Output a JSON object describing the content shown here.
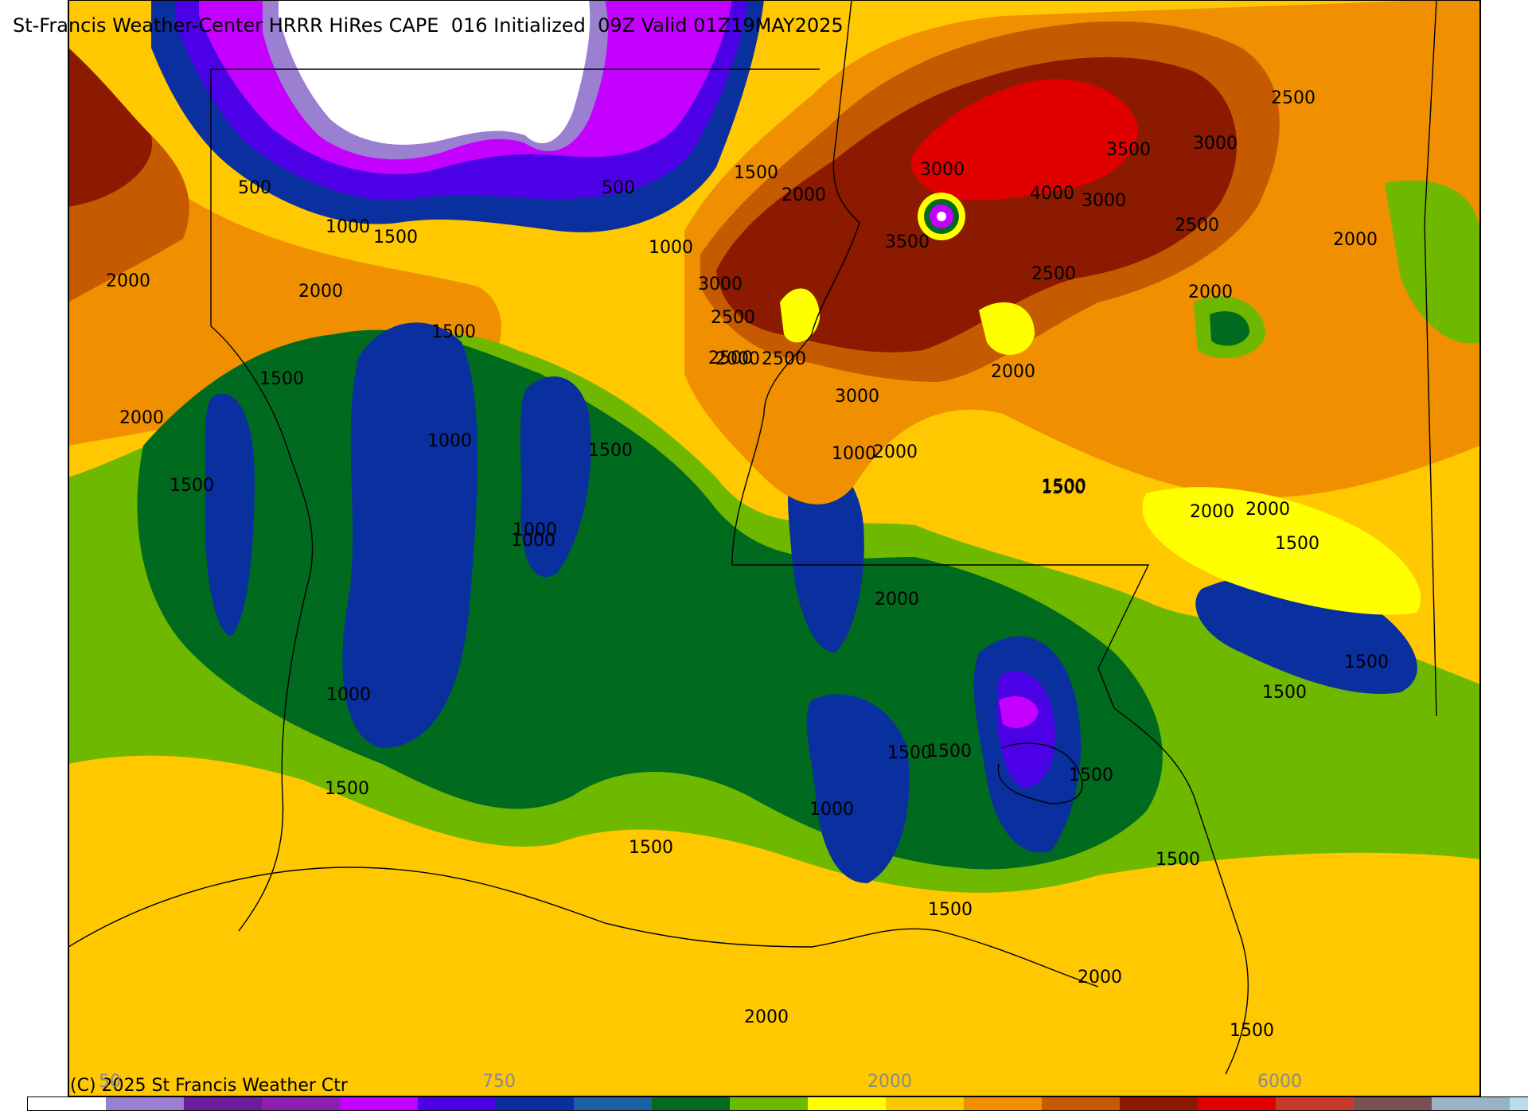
{
  "title": "St-Francis Weather-Center HRRR HiRes CAPE  016 Initialized  09Z Valid 01Z19MAY2025",
  "copyright": "(C) 2025 St Francis Weather Ctr",
  "colorbar": {
    "tick_labels": [
      "50",
      "750",
      "2000",
      "6000"
    ],
    "colors": [
      "#ffffff",
      "#9b7fd1",
      "#6a1c9a",
      "#8b1fb0",
      "#c400ff",
      "#4c00e6",
      "#0a2f9e",
      "#1d5fa3",
      "#006b1e",
      "#6fb800",
      "#ffff00",
      "#ffc800",
      "#f09000",
      "#c65a00",
      "#8b1a00",
      "#e00000",
      "#c83a28",
      "#7a5050",
      "#9ab2c8",
      "#b8dcec"
    ]
  },
  "contour_labels": [
    "500",
    "500",
    "1000",
    "1500",
    "1000",
    "1500",
    "2000",
    "2000",
    "2000",
    "1500",
    "1500",
    "2000",
    "1000",
    "1500",
    "1000",
    "1500",
    "1000",
    "1000",
    "1500",
    "1000",
    "1500",
    "1500",
    "1500",
    "2000",
    "2500",
    "3000",
    "2500",
    "2000",
    "2500",
    "3000",
    "3500",
    "3000",
    "4000",
    "3000",
    "3500",
    "3000",
    "2500",
    "2500",
    "2000",
    "2000",
    "2000",
    "2000",
    "2000",
    "1500",
    "1500",
    "1000",
    "1500",
    "1500",
    "1500",
    "2000",
    "1500",
    "1500",
    "2000",
    "1500",
    "1500",
    "2500",
    "2000"
  ],
  "map_colors": {
    "white": "#ffffff",
    "lavender": "#9b7fd1",
    "magenta": "#c400ff",
    "violet": "#4c00e6",
    "navy": "#0a2f9e",
    "darkgreen": "#006b1e",
    "green": "#6fb800",
    "yellow": "#ffff00",
    "gold": "#ffc800",
    "orange": "#f09000",
    "rust": "#c65a00",
    "darkred": "#8b1a00",
    "red": "#e00000"
  }
}
